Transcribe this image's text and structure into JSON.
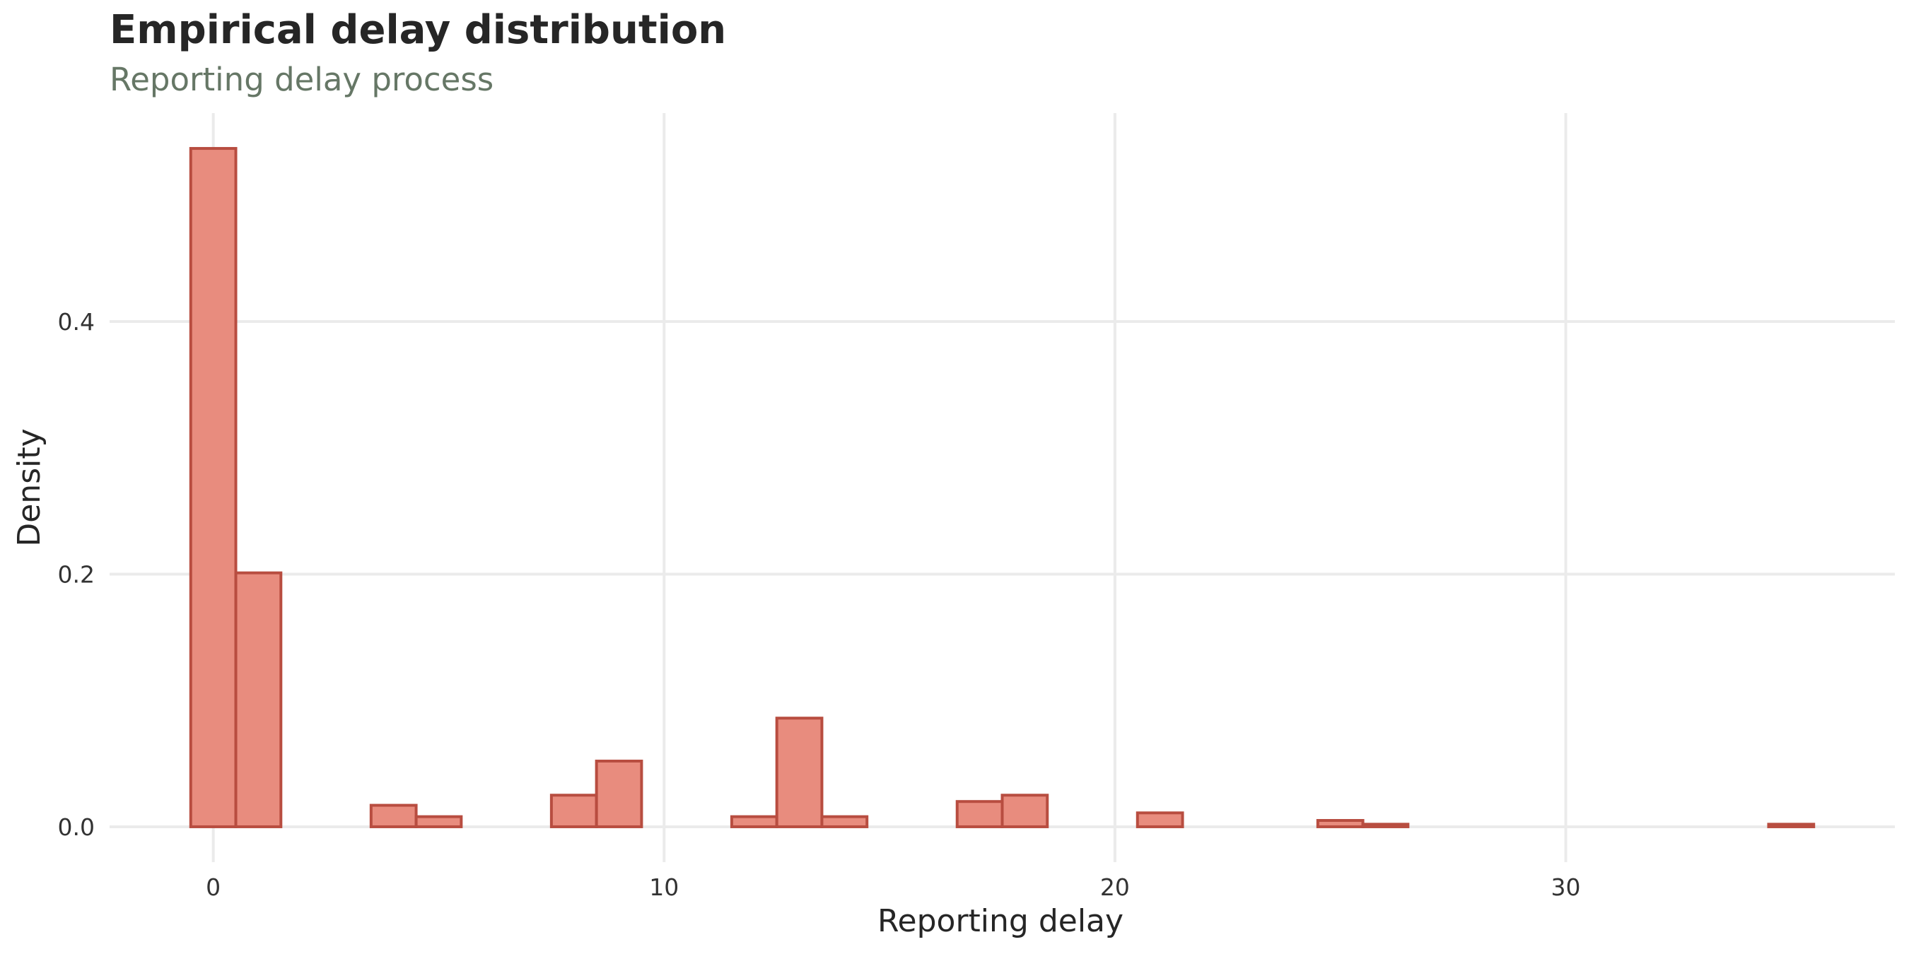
{
  "chart_data": {
    "type": "bar",
    "title": "Empirical delay distribution",
    "subtitle": "Reporting delay process",
    "xlabel": "Reporting delay",
    "ylabel": "Density",
    "xlim": [
      -2.3,
      37.3
    ],
    "ylim": [
      -0.028,
      0.565
    ],
    "x_ticks": [
      0,
      10,
      20,
      30
    ],
    "y_ticks": [
      0.0,
      0.2,
      0.4
    ],
    "x_tick_labels": [
      "0",
      "10",
      "20",
      "30"
    ],
    "y_tick_labels": [
      "0.0",
      "0.2",
      "0.4"
    ],
    "grid": true,
    "bin_width": 1,
    "bin_centers": [
      0,
      1,
      2,
      3,
      4,
      5,
      6,
      7,
      8,
      9,
      10,
      11,
      12,
      13,
      14,
      15,
      16,
      17,
      18,
      19,
      20,
      21,
      22,
      23,
      24,
      25,
      26,
      27,
      28,
      29,
      30,
      31,
      32,
      33,
      34,
      35
    ],
    "values": [
      0.537,
      0.201,
      0.0,
      0.0,
      0.017,
      0.008,
      0.0,
      0.0,
      0.025,
      0.052,
      0.0,
      0.0,
      0.008,
      0.086,
      0.008,
      0.0,
      0.0,
      0.02,
      0.025,
      0.0,
      0.0,
      0.011,
      0.0,
      0.0,
      0.0,
      0.005,
      0.002,
      0.0,
      0.0,
      0.0,
      0.0,
      0.0,
      0.0,
      0.0,
      0.0,
      0.002
    ],
    "fill_color": "#e88c7e",
    "outline_color": "#b84d40",
    "grid_color": "#ebebeb"
  }
}
